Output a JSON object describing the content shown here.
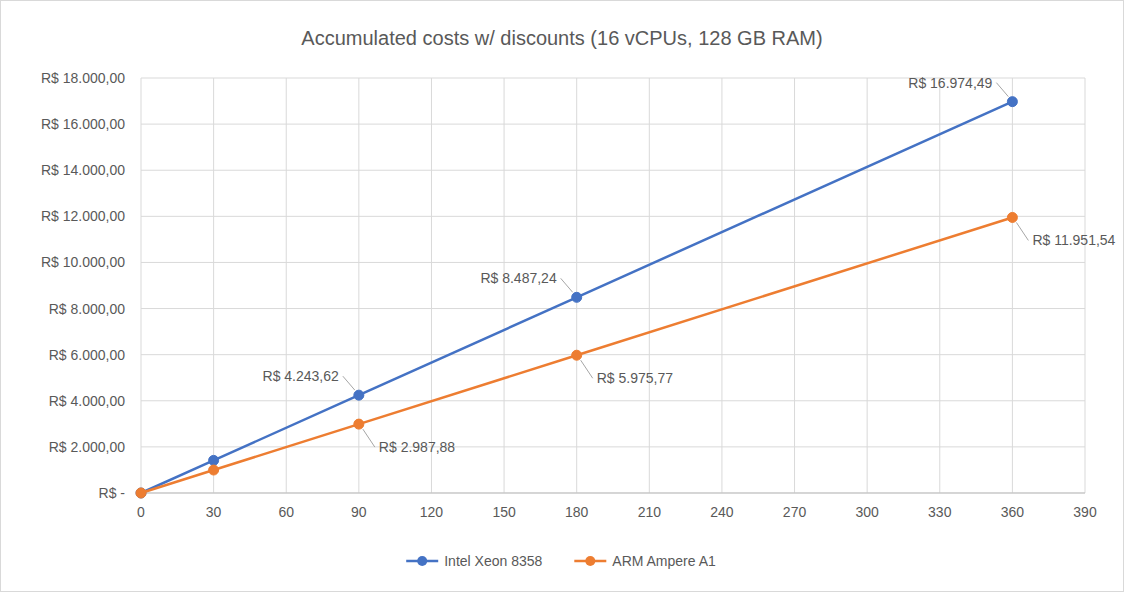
{
  "chart_data": {
    "type": "line",
    "title": "Accumulated costs w/ discounts (16 vCPUs, 128 GB RAM)",
    "x": [
      0,
      30,
      90,
      180,
      360
    ],
    "series": [
      {
        "name": "Intel Xeon 8358",
        "color": "#4472c4",
        "marker": "circle",
        "values": [
          0,
          1414.54,
          4243.62,
          8487.24,
          16974.49
        ],
        "value_labels": [
          null,
          null,
          "R$ 4.243,62",
          "R$ 8.487,24",
          "R$ 16.974,49"
        ]
      },
      {
        "name": "ARM Ampere A1",
        "color": "#ed7d31",
        "marker": "circle",
        "values": [
          0,
          995.96,
          2987.88,
          5975.77,
          11951.54
        ],
        "value_labels": [
          null,
          null,
          "R$ 2.987,88",
          "R$ 5.975,77",
          "R$ 11.951,54"
        ]
      }
    ],
    "xlim": [
      0,
      390
    ],
    "xticks": [
      0,
      30,
      60,
      90,
      120,
      150,
      180,
      210,
      240,
      270,
      300,
      330,
      360,
      390
    ],
    "ylim": [
      0,
      18000
    ],
    "yticks": [
      {
        "value": 0,
        "label": "R$ -"
      },
      {
        "value": 2000,
        "label": "R$ 2.000,00"
      },
      {
        "value": 4000,
        "label": "R$ 4.000,00"
      },
      {
        "value": 6000,
        "label": "R$ 6.000,00"
      },
      {
        "value": 8000,
        "label": "R$ 8.000,00"
      },
      {
        "value": 10000,
        "label": "R$ 10.000,00"
      },
      {
        "value": 12000,
        "label": "R$ 12.000,00"
      },
      {
        "value": 14000,
        "label": "R$ 14.000,00"
      },
      {
        "value": 16000,
        "label": "R$ 16.000,00"
      },
      {
        "value": 18000,
        "label": "R$ 18.000,00"
      }
    ],
    "grid": true,
    "legend": "bottom",
    "data_labels": true
  }
}
